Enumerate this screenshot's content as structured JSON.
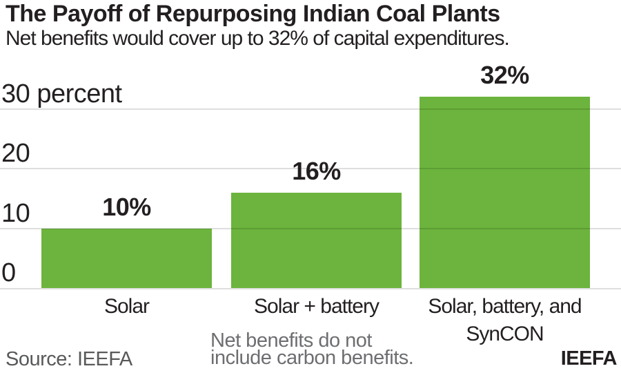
{
  "chart_data": {
    "type": "bar",
    "title": "The Payoff of Repurposing Indian Coal Plants",
    "subtitle": "Net benefits would cover up to 32% of capital expenditures.",
    "unit": "percent",
    "categories": [
      "Solar",
      "Solar + battery",
      "Solar, battery, and SynCON"
    ],
    "category_lines": [
      [
        "Solar"
      ],
      [
        "Solar + battery"
      ],
      [
        "Solar, battery, and",
        "SynCON"
      ]
    ],
    "values": [
      10,
      16,
      32
    ],
    "value_labels": [
      "10%",
      "16%",
      "32%"
    ],
    "yticks": [
      0,
      10,
      20,
      30
    ],
    "ytick_labels": [
      "0",
      "10",
      "20",
      "30 percent"
    ],
    "ylim": [
      0,
      34
    ],
    "grid": "horizontal",
    "legend": "none",
    "footnote_lines": [
      "Net benefits do not",
      "include carbon benefits."
    ],
    "source": "Source: IEEFA",
    "brand": "IEEFA"
  },
  "colors": {
    "bar_green": "#6cb43d",
    "text_dark": "#231f20",
    "source_gray": "#58595b",
    "footnote_gray": "#6d6e71",
    "gridline": "rgba(0,0,0,0.13)"
  }
}
